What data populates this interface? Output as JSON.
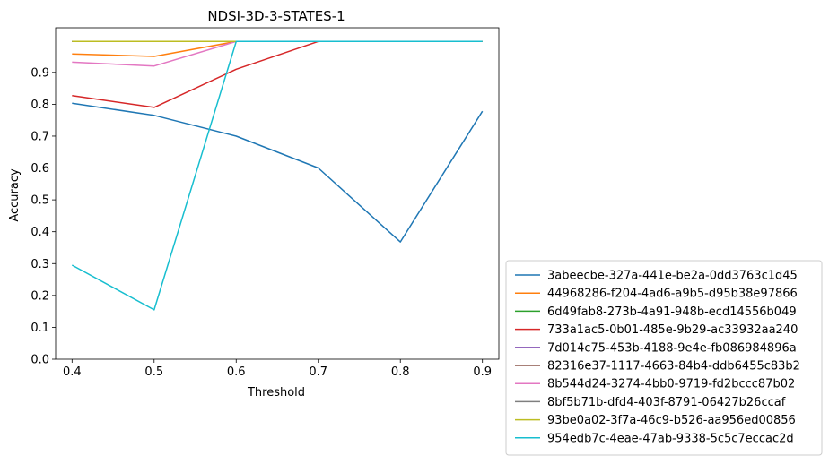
{
  "chart_data": {
    "type": "line",
    "title": "NDSI-3D-3-STATES-1",
    "xlabel": "Threshold",
    "ylabel": "Accuracy",
    "x": [
      0.4,
      0.5,
      0.6,
      0.7,
      0.8,
      0.9
    ],
    "xlim": [
      0.38,
      0.92
    ],
    "ylim": [
      0.0,
      1.04
    ],
    "xticks": [
      "0.4",
      "0.5",
      "0.6",
      "0.7",
      "0.8",
      "0.9"
    ],
    "yticks": [
      "0.0",
      "0.1",
      "0.2",
      "0.3",
      "0.4",
      "0.5",
      "0.6",
      "0.7",
      "0.8",
      "0.9"
    ],
    "grid": false,
    "legend_position": "outside-bottom-right",
    "series": [
      {
        "name": "3abeecbe-327a-441e-be2a-0dd3763c1d45",
        "color": "#1f77b4",
        "values": [
          0.803,
          0.765,
          0.7,
          0.6,
          0.368,
          0.778
        ]
      },
      {
        "name": "44968286-f204-4ad6-a9b5-d95b38e97866",
        "color": "#ff7f0e",
        "values": [
          0.958,
          0.95,
          0.997,
          0.997,
          0.997,
          0.997
        ]
      },
      {
        "name": "6d49fab8-273b-4a91-948b-ecd14556b049",
        "color": "#2ca02c",
        "values": [
          0.997,
          0.997,
          0.997,
          0.997,
          0.997,
          0.997
        ]
      },
      {
        "name": "733a1ac5-0b01-485e-9b29-ac33932aa240",
        "color": "#d62728",
        "values": [
          0.827,
          0.79,
          0.91,
          0.997,
          0.997,
          0.997
        ]
      },
      {
        "name": "7d014c75-453b-4188-9e4e-fb086984896a",
        "color": "#9467bd",
        "values": [
          0.997,
          0.997,
          0.997,
          0.997,
          0.997,
          0.997
        ]
      },
      {
        "name": "82316e37-1117-4663-84b4-ddb6455c83b2",
        "color": "#8c564b",
        "values": [
          0.997,
          0.997,
          0.997,
          0.997,
          0.997,
          0.997
        ]
      },
      {
        "name": "8b544d24-3274-4bb0-9719-fd2bccc87b02",
        "color": "#e377c2",
        "values": [
          0.932,
          0.92,
          0.997,
          0.997,
          0.997,
          0.997
        ]
      },
      {
        "name": "8bf5b71b-dfd4-403f-8791-06427b26ccaf",
        "color": "#7f7f7f",
        "values": [
          0.997,
          0.997,
          0.997,
          0.997,
          0.997,
          0.997
        ]
      },
      {
        "name": "93be0a02-3f7a-46c9-b526-aa956ed00856",
        "color": "#bcbd22",
        "values": [
          0.997,
          0.997,
          0.997,
          0.997,
          0.997,
          0.997
        ]
      },
      {
        "name": "954edb7c-4eae-47ab-9338-5c5c7eccac2d",
        "color": "#17becf",
        "values": [
          0.295,
          0.155,
          0.997,
          0.997,
          0.997,
          0.997
        ]
      }
    ]
  }
}
